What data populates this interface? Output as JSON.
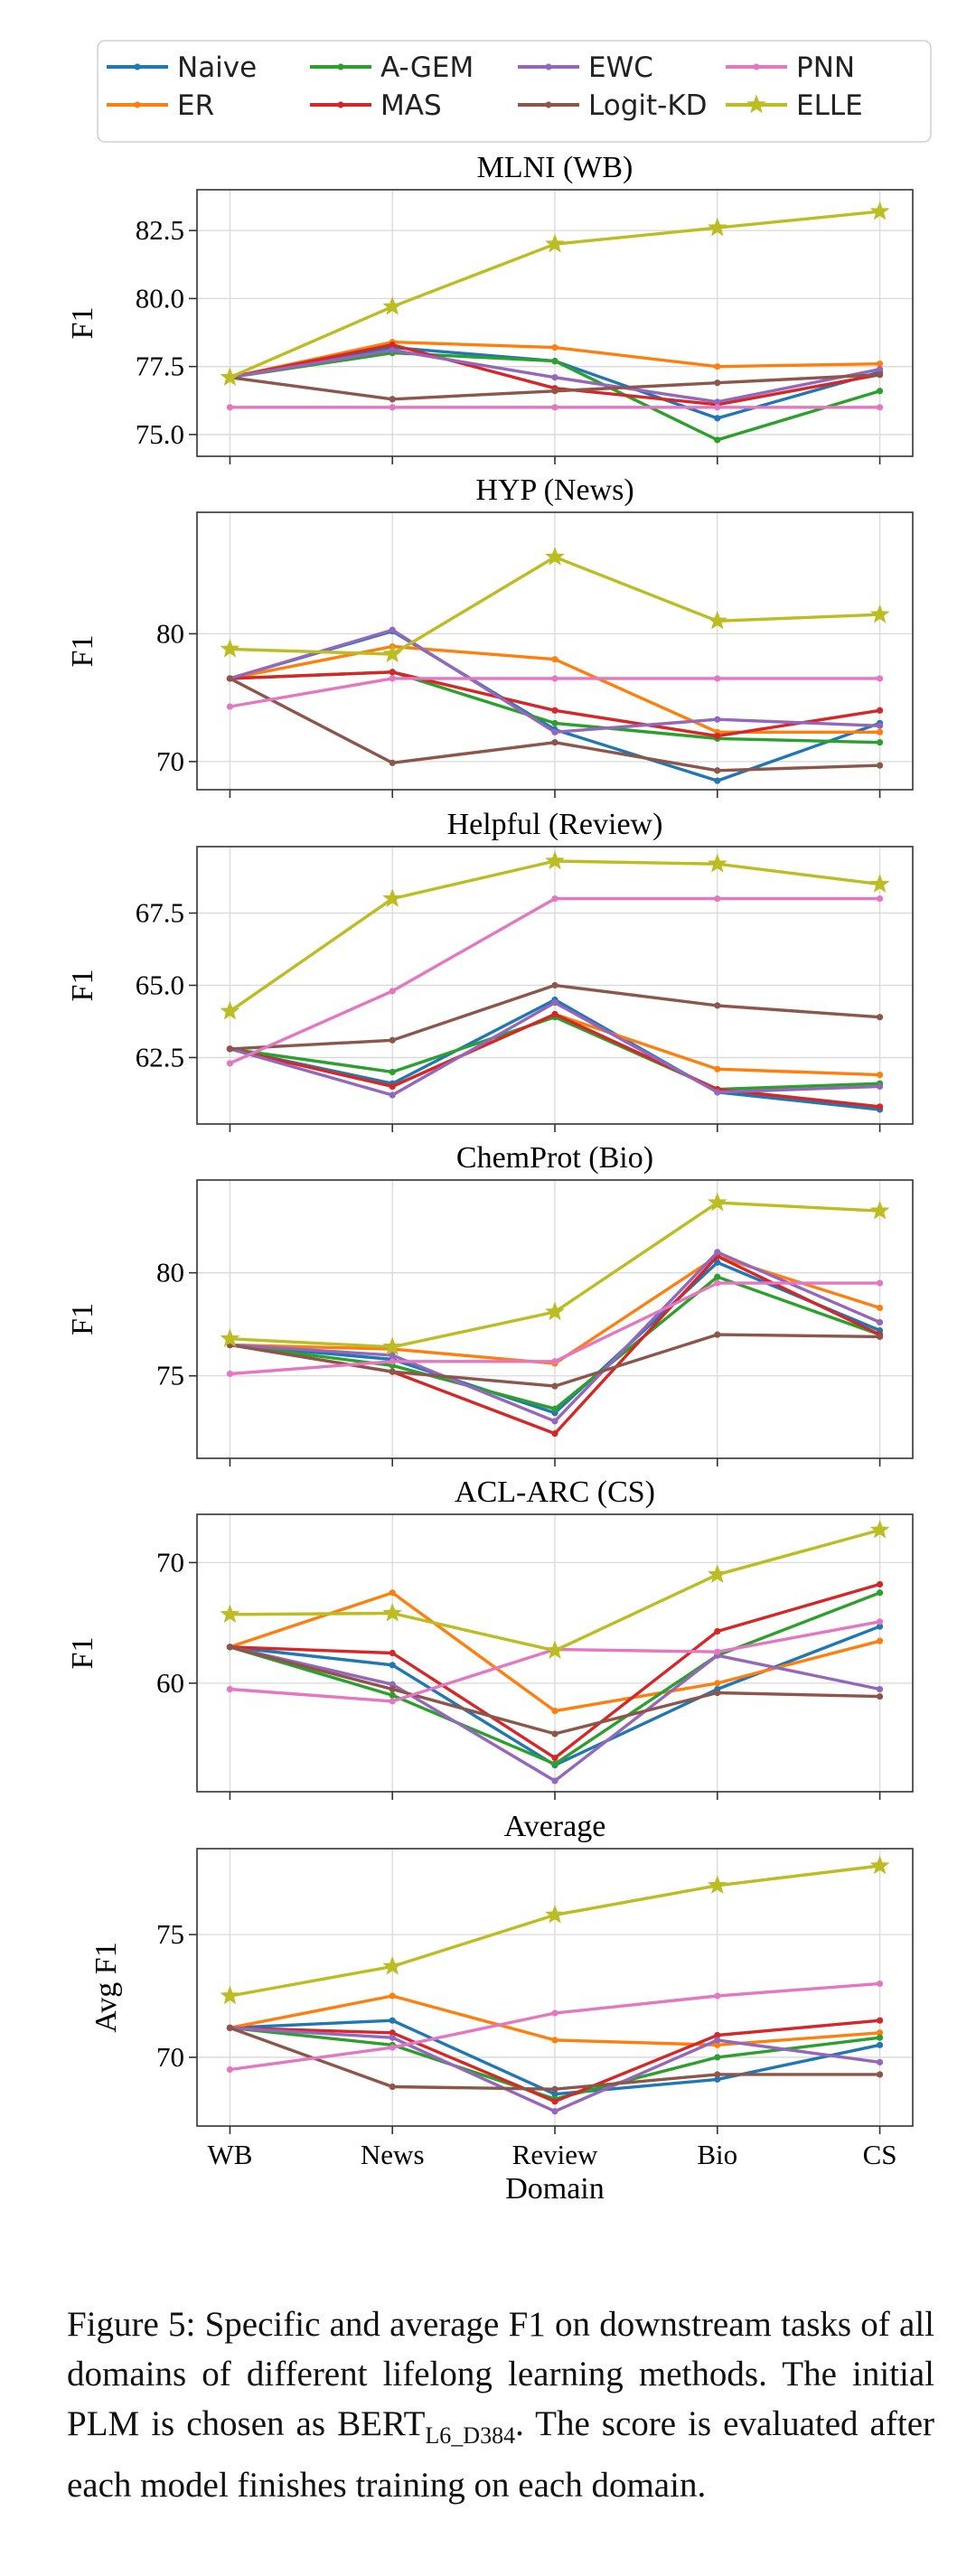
{
  "chart_data": {
    "type": "line",
    "x": [
      "WB",
      "News",
      "Review",
      "Bio",
      "CS"
    ],
    "xlabel": "Domain",
    "legend_position": "top",
    "series_styles": [
      {
        "name": "Naive",
        "color": "#1f77b4",
        "marker": "dot"
      },
      {
        "name": "ER",
        "color": "#ff7f0e",
        "marker": "dot"
      },
      {
        "name": "A-GEM",
        "color": "#2ca02c",
        "marker": "dot"
      },
      {
        "name": "MAS",
        "color": "#d62728",
        "marker": "dot"
      },
      {
        "name": "EWC",
        "color": "#9467bd",
        "marker": "dot"
      },
      {
        "name": "Logit-KD",
        "color": "#8c564b",
        "marker": "dot"
      },
      {
        "name": "PNN",
        "color": "#e377c2",
        "marker": "dot"
      },
      {
        "name": "ELLE",
        "color": "#bcbd22",
        "marker": "star"
      }
    ],
    "panels": [
      {
        "title": "MLNI (WB)",
        "ylabel": "F1",
        "ylim": [
          74.2,
          84.0
        ],
        "yticks": [
          75.0,
          77.5,
          80.0,
          82.5
        ],
        "ytick_labels": [
          "75.0",
          "77.5",
          "80.0",
          "82.5"
        ],
        "series": [
          {
            "name": "Naive",
            "values": [
              77.1,
              78.2,
              77.7,
              75.6,
              77.3
            ]
          },
          {
            "name": "ER",
            "values": [
              77.1,
              78.4,
              78.2,
              77.5,
              77.6
            ]
          },
          {
            "name": "A-GEM",
            "values": [
              77.1,
              78.0,
              77.7,
              74.8,
              76.6
            ]
          },
          {
            "name": "MAS",
            "values": [
              77.1,
              78.3,
              76.7,
              76.1,
              77.2
            ]
          },
          {
            "name": "EWC",
            "values": [
              77.1,
              78.1,
              77.1,
              76.2,
              77.4
            ]
          },
          {
            "name": "Logit-KD",
            "values": [
              77.1,
              76.3,
              76.6,
              76.9,
              77.2
            ]
          },
          {
            "name": "PNN",
            "values": [
              76.0,
              76.0,
              76.0,
              76.0,
              76.0
            ]
          },
          {
            "name": "ELLE",
            "values": [
              77.1,
              79.7,
              82.0,
              82.6,
              83.2
            ]
          }
        ]
      },
      {
        "title": "HYP (News)",
        "ylabel": "F1",
        "ylim": [
          67.8,
          89.5
        ],
        "yticks": [
          70,
          80
        ],
        "ytick_labels": [
          "70",
          "80"
        ],
        "series": [
          {
            "name": "Naive",
            "values": [
              76.5,
              80.2,
              72.5,
              68.5,
              73.0
            ]
          },
          {
            "name": "ER",
            "values": [
              76.5,
              79.0,
              78.0,
              72.3,
              72.3
            ]
          },
          {
            "name": "A-GEM",
            "values": [
              76.5,
              77.0,
              73.0,
              71.8,
              71.5
            ]
          },
          {
            "name": "MAS",
            "values": [
              76.5,
              77.0,
              74.0,
              72.0,
              74.0
            ]
          },
          {
            "name": "EWC",
            "values": [
              76.5,
              80.3,
              72.3,
              73.3,
              72.8
            ]
          },
          {
            "name": "Logit-KD",
            "values": [
              76.5,
              69.9,
              71.5,
              69.3,
              69.7
            ]
          },
          {
            "name": "PNN",
            "values": [
              74.3,
              76.5,
              76.5,
              76.5,
              76.5
            ]
          },
          {
            "name": "ELLE",
            "values": [
              78.8,
              78.4,
              86.0,
              81.0,
              81.5
            ]
          }
        ]
      },
      {
        "title": "Helpful (Review)",
        "ylabel": "F1",
        "ylim": [
          60.2,
          69.8
        ],
        "yticks": [
          62.5,
          65.0,
          67.5
        ],
        "ytick_labels": [
          "62.5",
          "65.0",
          "67.5"
        ],
        "series": [
          {
            "name": "Naive",
            "values": [
              62.8,
              61.6,
              64.5,
              61.3,
              60.7
            ]
          },
          {
            "name": "ER",
            "values": [
              62.8,
              61.5,
              64.0,
              62.1,
              61.9
            ]
          },
          {
            "name": "A-GEM",
            "values": [
              62.8,
              62.0,
              63.9,
              61.4,
              61.6
            ]
          },
          {
            "name": "MAS",
            "values": [
              62.8,
              61.5,
              64.0,
              61.4,
              60.8
            ]
          },
          {
            "name": "EWC",
            "values": [
              62.8,
              61.2,
              64.4,
              61.3,
              61.5
            ]
          },
          {
            "name": "Logit-KD",
            "values": [
              62.8,
              63.1,
              65.0,
              64.3,
              63.9
            ]
          },
          {
            "name": "PNN",
            "values": [
              62.3,
              64.8,
              68.0,
              68.0,
              68.0
            ]
          },
          {
            "name": "ELLE",
            "values": [
              64.1,
              68.0,
              69.3,
              69.2,
              68.5
            ]
          }
        ]
      },
      {
        "title": "ChemProt (Bio)",
        "ylabel": "F1",
        "ylim": [
          71.0,
          84.5
        ],
        "yticks": [
          75,
          80
        ],
        "ytick_labels": [
          "75",
          "80"
        ],
        "series": [
          {
            "name": "Naive",
            "values": [
              76.5,
              75.8,
              73.2,
              80.5,
              77.2
            ]
          },
          {
            "name": "ER",
            "values": [
              76.5,
              76.3,
              75.6,
              80.8,
              78.3
            ]
          },
          {
            "name": "A-GEM",
            "values": [
              76.5,
              75.5,
              73.4,
              79.8,
              77.0
            ]
          },
          {
            "name": "MAS",
            "values": [
              76.5,
              75.2,
              72.2,
              80.8,
              77.0
            ]
          },
          {
            "name": "EWC",
            "values": [
              76.5,
              76.0,
              72.8,
              81.0,
              77.6
            ]
          },
          {
            "name": "Logit-KD",
            "values": [
              76.5,
              75.2,
              74.5,
              77.0,
              76.9
            ]
          },
          {
            "name": "PNN",
            "values": [
              75.1,
              75.7,
              75.7,
              79.5,
              79.5
            ]
          },
          {
            "name": "ELLE",
            "values": [
              76.8,
              76.4,
              78.1,
              83.4,
              83.0
            ]
          }
        ]
      },
      {
        "title": "ACL-ARC (CS)",
        "ylabel": "F1",
        "ylim": [
          51.0,
          74.0
        ],
        "yticks": [
          60,
          70
        ],
        "ytick_labels": [
          "60",
          "70"
        ],
        "series": [
          {
            "name": "Naive",
            "values": [
              63.0,
              61.5,
              53.2,
              59.5,
              64.7
            ]
          },
          {
            "name": "ER",
            "values": [
              63.0,
              67.5,
              57.7,
              60.0,
              63.5
            ]
          },
          {
            "name": "A-GEM",
            "values": [
              63.0,
              59.0,
              53.3,
              62.3,
              67.5
            ]
          },
          {
            "name": "MAS",
            "values": [
              63.0,
              62.5,
              53.8,
              64.3,
              68.2
            ]
          },
          {
            "name": "EWC",
            "values": [
              63.0,
              59.9,
              51.9,
              62.3,
              59.5
            ]
          },
          {
            "name": "Logit-KD",
            "values": [
              63.0,
              59.5,
              55.8,
              59.2,
              58.9
            ]
          },
          {
            "name": "PNN",
            "values": [
              59.5,
              58.5,
              62.8,
              62.6,
              65.1
            ]
          },
          {
            "name": "ELLE",
            "values": [
              65.7,
              65.8,
              62.7,
              69.0,
              72.7
            ]
          }
        ]
      },
      {
        "title": "Average",
        "ylabel": "Avg F1",
        "ylim": [
          67.2,
          78.5
        ],
        "yticks": [
          70,
          75
        ],
        "ytick_labels": [
          "70",
          "75"
        ],
        "series": [
          {
            "name": "Naive",
            "values": [
              71.2,
              71.5,
              68.5,
              69.1,
              70.5
            ]
          },
          {
            "name": "ER",
            "values": [
              71.2,
              72.5,
              70.7,
              70.5,
              71.0
            ]
          },
          {
            "name": "A-GEM",
            "values": [
              71.2,
              70.5,
              68.3,
              70.0,
              70.8
            ]
          },
          {
            "name": "MAS",
            "values": [
              71.2,
              71.0,
              68.2,
              70.9,
              71.5
            ]
          },
          {
            "name": "EWC",
            "values": [
              71.2,
              70.8,
              67.8,
              70.7,
              69.8
            ]
          },
          {
            "name": "Logit-KD",
            "values": [
              71.2,
              68.8,
              68.7,
              69.3,
              69.3
            ]
          },
          {
            "name": "PNN",
            "values": [
              69.5,
              70.4,
              71.8,
              72.5,
              73.0
            ]
          },
          {
            "name": "ELLE",
            "values": [
              72.5,
              73.7,
              75.8,
              77.0,
              77.8
            ]
          }
        ]
      }
    ]
  },
  "legend": {
    "columns": [
      [
        "Naive",
        "ER"
      ],
      [
        "A-GEM",
        "MAS"
      ],
      [
        "EWC",
        "Logit-KD"
      ],
      [
        "PNN",
        "ELLE"
      ]
    ]
  },
  "caption": {
    "part1": "Figure 5: Specific and average F1 on downstream tasks of all domains of different lifelong learning methods. The initial PLM is chosen as BERT",
    "subscript": "L6_D384",
    "part2": ". The score is evaluated after each model finishes training on each domain."
  }
}
